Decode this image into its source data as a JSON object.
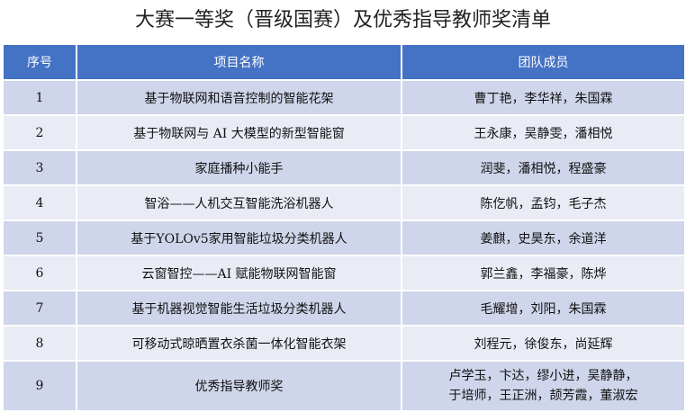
{
  "header": {
    "title": "大赛一等奖（晋级国赛）及优秀指导教师奖清单"
  },
  "table": {
    "columns": [
      "序号",
      "项目名称",
      "团队成员"
    ],
    "rows": [
      [
        1,
        "基于物联网和语音控制的智能花架",
        "曹丁艳，李华祥，朱国霖"
      ],
      [
        2,
        "基于物联网与 AI 大模型的新型智能窗",
        "王永康，吴静雯，潘相悦"
      ],
      [
        3,
        "家庭播种小能手",
        "润斐，潘相悦，程盛豪"
      ],
      [
        4,
        "智浴——人机交互智能洗浴机器人",
        "陈仡帆，孟钧，毛子杰"
      ],
      [
        5,
        "基于YOLOv5家用智能垃圾分类机器人",
        "姜麒，史昊东，余道洋"
      ],
      [
        6,
        "云窗智控——AI 赋能物联网智能窗",
        "郭兰鑫，李福豪，陈烨"
      ],
      [
        7,
        "基于机器视觉智能生活垃圾分类机器人",
        "毛耀增，刘阳，朱国霖"
      ],
      [
        8,
        "可移动式晾晒置衣杀菌一体化智能衣架",
        "刘程元，徐俊东，尚延辉"
      ],
      [
        9,
        "优秀指导教师奖",
        [
          "卢学玉，卞达，缪小进，吴静静，",
          "于培师，王正洲，颉芳霞，董淑宏"
        ]
      ]
    ]
  }
}
